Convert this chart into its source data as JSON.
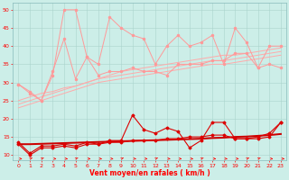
{
  "xlabel": "Vent moyen/en rafales ( km/h )",
  "xlim": [
    -0.5,
    23.5
  ],
  "ylim": [
    8.5,
    52
  ],
  "yticks": [
    10,
    15,
    20,
    25,
    30,
    35,
    40,
    45,
    50
  ],
  "xticks": [
    0,
    1,
    2,
    3,
    4,
    5,
    6,
    7,
    8,
    9,
    10,
    11,
    12,
    13,
    14,
    15,
    16,
    17,
    18,
    19,
    20,
    21,
    22,
    23
  ],
  "bg_color": "#cceee8",
  "grid_color": "#aad4cc",
  "x_light": [
    0,
    1,
    2,
    3,
    4,
    5,
    6,
    7,
    8,
    9,
    10,
    11,
    12,
    13,
    14,
    15,
    16,
    17,
    18,
    19,
    20,
    21,
    22,
    23
  ],
  "line_light_1": [
    29.5,
    27,
    25,
    32,
    50,
    50,
    37,
    35,
    48,
    45,
    43,
    42,
    35,
    40,
    43,
    40,
    41,
    43,
    35,
    45,
    41,
    34,
    40,
    40
  ],
  "line_light_2": [
    29.5,
    27.5,
    25,
    33,
    42,
    31,
    37,
    32,
    33,
    33,
    34,
    33,
    33,
    32,
    35,
    35,
    35,
    36,
    36,
    38,
    38,
    34,
    35,
    34
  ],
  "x_trend": [
    0,
    1,
    2,
    3,
    4,
    5,
    6,
    7,
    8,
    9,
    10,
    11,
    12,
    13,
    14,
    15,
    16,
    17,
    18,
    19,
    20,
    21,
    22,
    23
  ],
  "line_light_trend_1": [
    25,
    26,
    27,
    27.5,
    28.5,
    29,
    30,
    31,
    32,
    33,
    33.5,
    34,
    34.5,
    35,
    35.5,
    36,
    36.5,
    37,
    37.5,
    37.5,
    38,
    38.5,
    39,
    39.5
  ],
  "line_light_trend_2": [
    24,
    25,
    26,
    27,
    28,
    29,
    30,
    31,
    31.5,
    32,
    32.5,
    33,
    33.5,
    34,
    34.5,
    35,
    35.5,
    36,
    36,
    36.5,
    37,
    37.5,
    38,
    38.5
  ],
  "line_light_trend_3": [
    23,
    24,
    25,
    26,
    27,
    28,
    29,
    30,
    30.5,
    31,
    31.5,
    32,
    32.5,
    33,
    33.5,
    34,
    34.5,
    35,
    35,
    35.5,
    36,
    36.5,
    37,
    37.5
  ],
  "x_dark": [
    0,
    1,
    2,
    3,
    4,
    5,
    6,
    7,
    8,
    9,
    10,
    11,
    12,
    13,
    14,
    15,
    16,
    17,
    18,
    19,
    20,
    21,
    22,
    23
  ],
  "line_dark_1": [
    13.5,
    10.5,
    12.5,
    12.5,
    13,
    12.5,
    13.5,
    13,
    14,
    14,
    21,
    17,
    16,
    17.5,
    16.5,
    12,
    14,
    19,
    19,
    14.5,
    14.5,
    14.5,
    15,
    19
  ],
  "line_dark_2": [
    13,
    10,
    12,
    12,
    12.5,
    12,
    13,
    13,
    13.5,
    13.5,
    14,
    14,
    14,
    14.5,
    14.5,
    15,
    15,
    15.5,
    15.5,
    14.5,
    14.5,
    15,
    16,
    19
  ],
  "line_dark_trend": [
    13.0,
    13.0,
    13.1,
    13.2,
    13.3,
    13.4,
    13.5,
    13.6,
    13.7,
    13.8,
    13.9,
    14.0,
    14.1,
    14.2,
    14.3,
    14.4,
    14.5,
    14.7,
    14.8,
    15.0,
    15.1,
    15.3,
    15.5,
    15.8
  ],
  "color_light": "#ff9999",
  "color_dark": "#dd0000",
  "color_trend_light": "#ffaaaa",
  "color_trend_dark": "#cc0000",
  "marker_size": 1.5,
  "linewidth_light": 0.7,
  "linewidth_dark": 0.8,
  "linewidth_trend": 0.7
}
